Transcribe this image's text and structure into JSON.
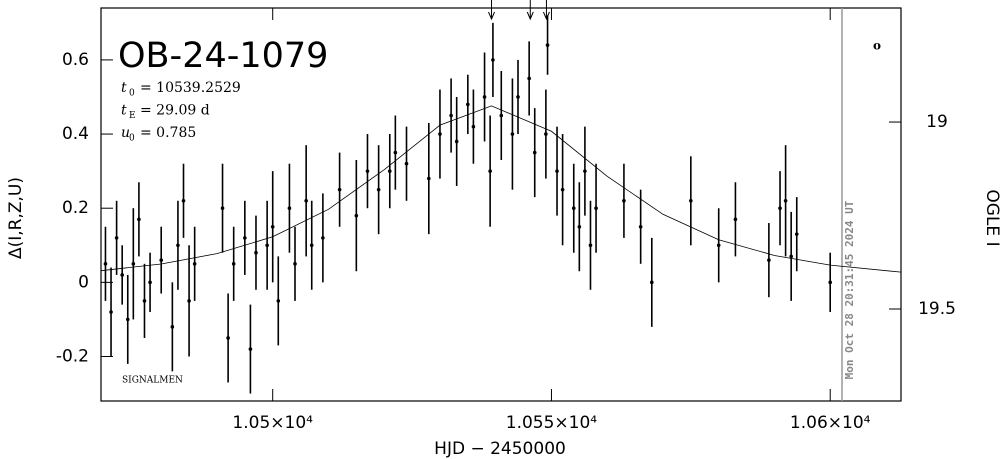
{
  "chart_data": {
    "type": "scatter",
    "title": "OB-24-1079",
    "x_label": "HJD − 2450000",
    "y_label": "Δ(I,R,Z,U)",
    "y2_label": "OGLE I",
    "timestamp": "Mon Oct 28 20:31:45 2024 UT",
    "credit": "SIGNALMEN",
    "corner_mark": "o",
    "params": [
      {
        "symbol": "t",
        "sub": "0",
        "text": "= 10539.2529"
      },
      {
        "symbol": "t",
        "sub": "E",
        "text": "= 29.09 d"
      },
      {
        "symbol": "u",
        "sub": "0",
        "text": "= 0.785"
      }
    ],
    "xlim": [
      10469.2,
      10612.7
    ],
    "ylim": [
      -0.32,
      0.74
    ],
    "y2lim": [
      19.746,
      18.695
    ],
    "xticks": [
      {
        "value": 10500,
        "label": "1.05×10⁴"
      },
      {
        "value": 10550,
        "label": "1.055×10⁴"
      },
      {
        "value": 10600,
        "label": "1.06×10⁴"
      }
    ],
    "yticks": [
      -0.2,
      0,
      0.2,
      0.4,
      0.6
    ],
    "y2ticks": [
      19,
      19.5
    ],
    "arrows_x": [
      10539.25,
      10546.2,
      10549.1
    ],
    "color": "#000000",
    "x": [
      10470,
      10471,
      10472,
      10473,
      10474,
      10475,
      10476,
      10477,
      10478,
      10480,
      10482,
      10483,
      10484,
      10485,
      10486,
      10491,
      10492,
      10493,
      10495,
      10496,
      10497,
      10499,
      10500,
      10501,
      10503,
      10504,
      10506,
      10507,
      10509,
      10512,
      10515,
      10517,
      10519,
      10521,
      10522,
      10524,
      10528,
      10530,
      10532,
      10533,
      10535,
      10536,
      10538,
      10539,
      10539.5,
      10541,
      10543,
      10544,
      10546,
      10547,
      10549,
      10549.3,
      10551,
      10552,
      10554,
      10555,
      10556,
      10557,
      10558,
      10563,
      10566,
      10568,
      10575,
      10580,
      10583,
      10589,
      10591,
      10592,
      10593,
      10594,
      10600
    ],
    "values": [
      0.05,
      -0.08,
      0.12,
      0.02,
      -0.1,
      0.05,
      0.17,
      -0.05,
      0.0,
      0.06,
      -0.12,
      0.1,
      0.22,
      -0.05,
      0.05,
      0.2,
      -0.15,
      0.05,
      0.12,
      -0.18,
      0.08,
      0.1,
      0.15,
      -0.05,
      0.2,
      0.05,
      0.22,
      0.1,
      0.12,
      0.25,
      0.18,
      0.3,
      0.25,
      0.3,
      0.35,
      0.32,
      0.28,
      0.4,
      0.45,
      0.38,
      0.48,
      0.42,
      0.5,
      0.3,
      0.6,
      0.45,
      0.4,
      0.5,
      0.55,
      0.35,
      0.4,
      0.64,
      0.3,
      0.25,
      0.2,
      0.15,
      0.3,
      0.1,
      0.2,
      0.22,
      0.15,
      0.0,
      0.22,
      0.1,
      0.17,
      0.06,
      0.2,
      0.22,
      0.07,
      0.13,
      0.0
    ],
    "errors": [
      0.1,
      0.12,
      0.1,
      0.08,
      0.12,
      0.15,
      0.1,
      0.1,
      0.08,
      0.09,
      0.12,
      0.12,
      0.1,
      0.15,
      0.1,
      0.12,
      0.12,
      0.1,
      0.1,
      0.12,
      0.1,
      0.12,
      0.15,
      0.12,
      0.12,
      0.1,
      0.15,
      0.12,
      0.12,
      0.1,
      0.15,
      0.1,
      0.12,
      0.1,
      0.1,
      0.1,
      0.15,
      0.12,
      0.1,
      0.12,
      0.08,
      0.1,
      0.12,
      0.15,
      0.1,
      0.12,
      0.15,
      0.1,
      0.1,
      0.12,
      0.12,
      0.08,
      0.12,
      0.15,
      0.12,
      0.12,
      0.12,
      0.12,
      0.12,
      0.1,
      0.1,
      0.12,
      0.12,
      0.1,
      0.1,
      0.1,
      0.1,
      0.15,
      0.12,
      0.1,
      0.08
    ],
    "model": {
      "x": [
        10469.2,
        10480,
        10490,
        10500,
        10510,
        10520,
        10530,
        10539.25,
        10550,
        10560,
        10570,
        10580,
        10590,
        10600,
        10612.7
      ],
      "values": [
        0.0315,
        0.0496,
        0.0776,
        0.123,
        0.197,
        0.304,
        0.424,
        0.476,
        0.4075,
        0.286,
        0.1836,
        0.115,
        0.0725,
        0.0465,
        0.0276
      ]
    }
  }
}
